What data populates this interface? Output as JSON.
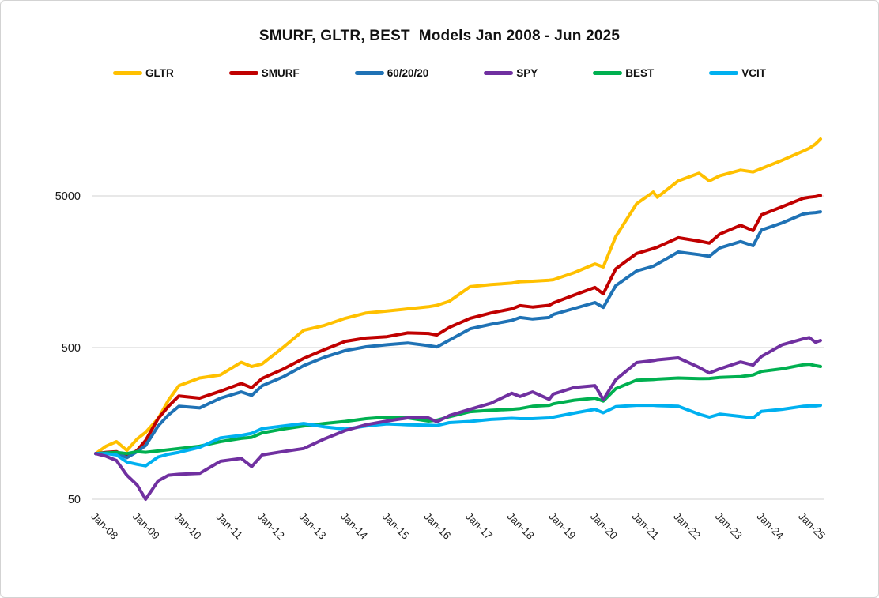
{
  "chart_data": {
    "type": "line",
    "title": "SMURF, GLTR, BEST  Models Jan 2008 - Jun 2025",
    "xlabel": "",
    "ylabel": "",
    "y_scale": "log",
    "grid": "horizontal-only",
    "grid_color": "#D9D9D9",
    "axis_text_color": "#1f1f1f",
    "legend_position": "top",
    "y_ticks": [
      50,
      500,
      5000
    ],
    "x_tick_labels": [
      "Jan-08",
      "Jan-09",
      "Jan-10",
      "Jan-11",
      "Jan-12",
      "Jan-13",
      "Jan-14",
      "Jan-15",
      "Jan-16",
      "Jan-17",
      "Jan-18",
      "Jan-19",
      "Jan-20",
      "Jan-21",
      "Jan-22",
      "Jan-23",
      "Jan-24",
      "Jan-25"
    ],
    "x_range_years": [
      2008.0,
      2025.42
    ],
    "y_range": [
      45,
      14000
    ],
    "x": [
      2008.0,
      2008.25,
      2008.5,
      2008.75,
      2009.0,
      2009.2,
      2009.5,
      2009.75,
      2010.0,
      2010.5,
      2011.0,
      2011.5,
      2011.75,
      2012.0,
      2012.5,
      2013.0,
      2013.5,
      2014.0,
      2014.5,
      2015.0,
      2015.5,
      2016.0,
      2016.2,
      2016.5,
      2017.0,
      2017.5,
      2018.0,
      2018.2,
      2018.5,
      2018.9,
      2019.0,
      2019.5,
      2020.0,
      2020.2,
      2020.5,
      2021.0,
      2021.4,
      2021.5,
      2022.0,
      2022.5,
      2022.75,
      2023.0,
      2023.5,
      2023.8,
      2024.0,
      2024.5,
      2025.0,
      2025.15,
      2025.3,
      2025.42
    ],
    "series": [
      {
        "name": "GLTR",
        "color": "#FFC000",
        "values": [
          100,
          112,
          120,
          105,
          125,
          138,
          170,
          225,
          280,
          315,
          330,
          400,
          375,
          390,
          500,
          650,
          700,
          780,
          845,
          870,
          900,
          930,
          950,
          1010,
          1260,
          1300,
          1330,
          1360,
          1370,
          1390,
          1400,
          1560,
          1780,
          1700,
          2700,
          4435,
          5300,
          4900,
          6280,
          7050,
          6280,
          6800,
          7400,
          7200,
          7570,
          8600,
          9875,
          10300,
          11000,
          11860
        ]
      },
      {
        "name": "SMURF",
        "color": "#C00000",
        "values": [
          100,
          102,
          103,
          95,
          105,
          122,
          170,
          205,
          240,
          232,
          258,
          290,
          272,
          313,
          360,
          424,
          485,
          550,
          578,
          590,
          625,
          620,
          605,
          680,
          780,
          845,
          900,
          945,
          925,
          950,
          985,
          1110,
          1245,
          1130,
          1650,
          2085,
          2250,
          2300,
          2650,
          2520,
          2440,
          2800,
          3200,
          2950,
          3750,
          4250,
          4820,
          4900,
          4950,
          5030
        ]
      },
      {
        "name": "60/20/20",
        "color": "#1F72B5",
        "values": [
          100,
          101,
          101,
          94,
          103,
          113,
          152,
          180,
          205,
          200,
          232,
          255,
          242,
          280,
          320,
          380,
          432,
          478,
          506,
          522,
          536,
          515,
          505,
          560,
          665,
          712,
          755,
          790,
          772,
          790,
          826,
          905,
          990,
          920,
          1280,
          1600,
          1720,
          1780,
          2135,
          2050,
          2000,
          2270,
          2500,
          2350,
          2980,
          3320,
          3795,
          3850,
          3880,
          3930
        ]
      },
      {
        "name": "SPY",
        "color": "#7030A0",
        "values": [
          100,
          96,
          90,
          72,
          62,
          50,
          66,
          72,
          73,
          74,
          89,
          93,
          82,
          98,
          103,
          108,
          125,
          142,
          155,
          164,
          172,
          172,
          162,
          178,
          196,
          215,
          250,
          238,
          255,
          228,
          247,
          273,
          281,
          227,
          307,
          398,
          410,
          415,
          428,
          370,
          340,
          362,
          402,
          383,
          437,
          522,
          570,
          582,
          542,
          557
        ]
      },
      {
        "name": "BEST",
        "color": "#00B050",
        "values": [
          100,
          101,
          102,
          100,
          103,
          102,
          104,
          106,
          108,
          112,
          120,
          126,
          128,
          137,
          145,
          152,
          158,
          163,
          170,
          174,
          172,
          164,
          166,
          175,
          189,
          193,
          196,
          198,
          205,
          208,
          213,
          225,
          232,
          222,
          268,
          305,
          308,
          310,
          315,
          312,
          313,
          318,
          322,
          330,
          348,
          362,
          385,
          388,
          380,
          375
        ]
      },
      {
        "name": "VCIT",
        "color": "#00B0F0",
        "values": [
          100,
          100,
          98,
          88,
          85,
          83,
          95,
          99,
          102,
          110,
          127,
          132,
          136,
          146,
          152,
          158,
          150,
          145,
          152,
          157,
          155,
          154,
          153,
          160,
          163,
          168,
          171,
          170,
          170,
          172,
          174,
          185,
          196,
          186,
          204,
          208,
          208,
          207,
          205,
          182,
          174,
          182,
          176,
          172,
          190,
          196,
          205,
          206,
          206,
          208
        ]
      }
    ]
  }
}
